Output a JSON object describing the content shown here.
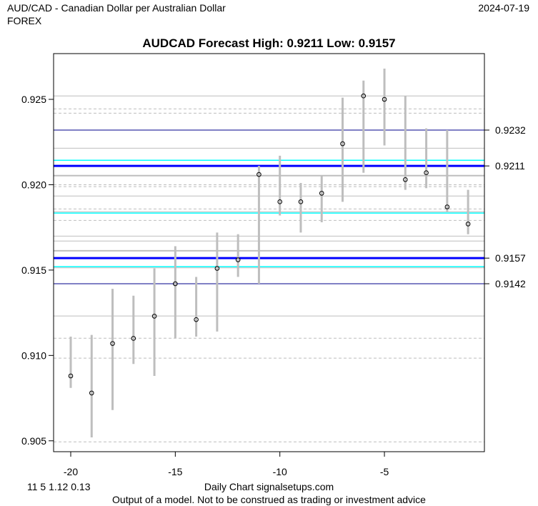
{
  "header": {
    "instrument": "AUD/CAD - Canadian Dollar per Australian Dollar",
    "market": "FOREX",
    "date": "2024-07-19"
  },
  "footer": {
    "params": "11 5 1.12 0.13",
    "source": "Daily Chart signalsetups.com",
    "disclaimer": "Output of a model. Not to be construed as trading or investment advice"
  },
  "chart_data": {
    "type": "errorbar",
    "title": "AUDCAD Forecast High: 0.9211 Low: 0.9157",
    "xlabel": "",
    "ylabel": "",
    "xlim": [
      -20.8,
      -0.4
    ],
    "ylim": [
      0.9045,
      0.9278
    ],
    "x_ticks": [
      -20,
      -15,
      -10,
      -5
    ],
    "y_ticks": [
      0.905,
      0.91,
      0.915,
      0.92,
      0.925
    ],
    "y_tick_labels": [
      "0.905",
      "0.910",
      "0.915",
      "0.920",
      "0.925"
    ],
    "points": [
      {
        "x": -20,
        "y": 0.9088,
        "low": 0.9081,
        "high": 0.9111
      },
      {
        "x": -19,
        "y": 0.9078,
        "low": 0.9052,
        "high": 0.9112
      },
      {
        "x": -18,
        "y": 0.9107,
        "low": 0.9068,
        "high": 0.9139
      },
      {
        "x": -17,
        "y": 0.911,
        "low": 0.9095,
        "high": 0.9135
      },
      {
        "x": -16,
        "y": 0.9123,
        "low": 0.9088,
        "high": 0.9151
      },
      {
        "x": -15,
        "y": 0.9142,
        "low": 0.911,
        "high": 0.9164
      },
      {
        "x": -14,
        "y": 0.9121,
        "low": 0.9111,
        "high": 0.9146
      },
      {
        "x": -13,
        "y": 0.9151,
        "low": 0.9114,
        "high": 0.9172
      },
      {
        "x": -12,
        "y": 0.9156,
        "low": 0.9146,
        "high": 0.9171
      },
      {
        "x": -11,
        "y": 0.9206,
        "low": 0.9142,
        "high": 0.9211
      },
      {
        "x": -10,
        "y": 0.919,
        "low": 0.9182,
        "high": 0.9217
      },
      {
        "x": -9,
        "y": 0.919,
        "low": 0.9172,
        "high": 0.9201
      },
      {
        "x": -8,
        "y": 0.9195,
        "low": 0.9178,
        "high": 0.9205
      },
      {
        "x": -7,
        "y": 0.9224,
        "low": 0.919,
        "high": 0.9251
      },
      {
        "x": -6,
        "y": 0.9252,
        "low": 0.9207,
        "high": 0.9261
      },
      {
        "x": -5,
        "y": 0.925,
        "low": 0.9223,
        "high": 0.9268
      },
      {
        "x": -4,
        "y": 0.9203,
        "low": 0.9197,
        "high": 0.9252
      },
      {
        "x": -3,
        "y": 0.9207,
        "low": 0.9198,
        "high": 0.9233
      },
      {
        "x": -2,
        "y": 0.9187,
        "low": 0.9184,
        "high": 0.9232
      },
      {
        "x": -1,
        "y": 0.9177,
        "low": 0.9171,
        "high": 0.9197
      }
    ],
    "marked_levels": [
      {
        "value": 0.9232,
        "label": "0.9232",
        "style": "thin",
        "color": "#00008b"
      },
      {
        "value": 0.9211,
        "label": "0.9211",
        "style": "thick",
        "color": "#0000ff"
      },
      {
        "value": 0.9157,
        "label": "0.9157",
        "style": "thick",
        "color": "#0000ff"
      },
      {
        "value": 0.9142,
        "label": "0.9142",
        "style": "thin",
        "color": "#00008b"
      }
    ],
    "cyan_levels": [
      0.92143,
      0.91834,
      0.9152
    ],
    "grey_solid_levels": [
      0.9252,
      0.92214,
      0.91934,
      0.91841,
      0.91699,
      0.9167,
      0.91513,
      0.91231
    ],
    "grey_thick_levels": [
      0.92053,
      0.91613
    ],
    "grey_dashed_levels": [
      0.92444,
      0.92419,
      0.92,
      0.91989,
      0.91858,
      0.91791,
      0.91101,
      0.90984,
      0.90494
    ],
    "colors": {
      "bars": "#bebebe",
      "grid": "#bebebe",
      "cyan": "#00ffff"
    }
  }
}
